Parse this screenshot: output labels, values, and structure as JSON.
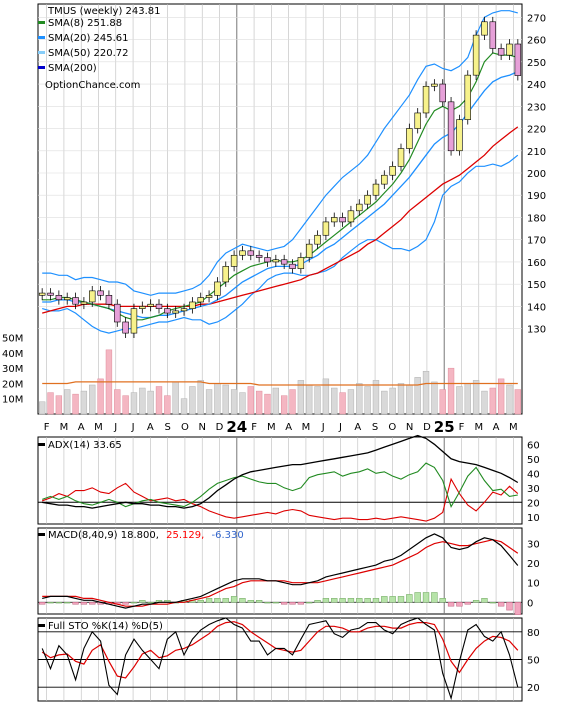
{
  "chart_data": {
    "type": "candlestick",
    "symbol_label": "TMUS (weekly) 243.81",
    "attribution": "OptionChance.com",
    "legend": [
      {
        "label": "SMA(8) 251.88",
        "color": "#228b22"
      },
      {
        "label": "SMA(20) 245.61",
        "color": "#1e90ff"
      },
      {
        "label": "SMA(50) 220.72",
        "color": "#87cefa"
      },
      {
        "label": "SMA(200)",
        "color": "#0000cc"
      }
    ],
    "price_axis": {
      "ticks": [
        "270",
        "260",
        "250",
        "240",
        "230",
        "220",
        "210",
        "200",
        "190",
        "180",
        "170",
        "160",
        "150",
        "140",
        "130"
      ],
      "ylim": [
        124,
        276
      ]
    },
    "volume_axis": {
      "ticks": [
        "50M",
        "40M",
        "30M",
        "20M",
        "10M"
      ],
      "ylim": [
        0,
        55
      ]
    },
    "month_labels": [
      "F",
      "M",
      "A",
      "M",
      "J",
      "J",
      "A",
      "S",
      "O",
      "N",
      "D",
      "24",
      "F",
      "M",
      "A",
      "M",
      "J",
      "J",
      "A",
      "S",
      "O",
      "N",
      "D",
      "25",
      "F",
      "M",
      "A",
      "M"
    ],
    "closes": [
      146,
      145,
      143,
      144,
      141,
      142,
      147,
      145,
      141,
      133,
      128,
      139,
      140,
      141,
      139,
      137,
      138,
      139,
      142,
      144,
      145,
      151,
      158,
      163,
      165,
      163,
      162,
      160,
      161,
      159,
      157,
      162,
      168,
      172,
      178,
      180,
      178,
      183,
      186,
      190,
      195,
      199,
      203,
      211,
      220,
      227,
      239,
      240,
      232,
      210,
      224,
      244,
      262,
      268,
      256,
      253,
      258,
      243.81
    ],
    "sma8": [
      143,
      143,
      144,
      144,
      143,
      142,
      141,
      140,
      139,
      137,
      135,
      134,
      134,
      135,
      136,
      138,
      139,
      140,
      141,
      142,
      145,
      148,
      151,
      154,
      156,
      158,
      159,
      160,
      161,
      160,
      160,
      161,
      163,
      166,
      169,
      172,
      175,
      178,
      181,
      184,
      187,
      191,
      195,
      200,
      206,
      214,
      222,
      228,
      230,
      228,
      230,
      234,
      241,
      250,
      254,
      253,
      253,
      251.88
    ],
    "sma20": [
      142,
      142,
      143,
      143,
      142,
      142,
      141,
      140,
      139,
      138,
      137,
      136,
      135,
      135,
      136,
      136,
      137,
      138,
      139,
      140,
      141,
      143,
      145,
      148,
      151,
      153,
      155,
      157,
      158,
      158,
      158,
      159,
      161,
      163,
      166,
      168,
      171,
      174,
      177,
      180,
      183,
      186,
      190,
      194,
      198,
      203,
      208,
      213,
      216,
      218,
      222,
      227,
      232,
      237,
      241,
      243,
      244,
      245.61
    ],
    "sma50": [
      137,
      138,
      139,
      140,
      140,
      141,
      141,
      141,
      141,
      140,
      140,
      140,
      140,
      140,
      140,
      140,
      140,
      140,
      140,
      141,
      141,
      142,
      143,
      144,
      145,
      146,
      147,
      148,
      149,
      150,
      151,
      152,
      154,
      155,
      157,
      159,
      161,
      163,
      165,
      168,
      170,
      173,
      176,
      179,
      183,
      186,
      189,
      192,
      195,
      197,
      199,
      202,
      205,
      208,
      212,
      215,
      218,
      220.72
    ],
    "bb_upper": [
      155,
      155,
      154,
      154,
      152,
      153,
      153,
      152,
      151,
      151,
      150,
      147,
      146,
      145,
      146,
      146,
      146,
      147,
      148,
      150,
      154,
      160,
      164,
      166,
      168,
      167,
      166,
      165,
      166,
      167,
      170,
      175,
      180,
      185,
      190,
      194,
      198,
      201,
      204,
      208,
      214,
      220,
      225,
      230,
      235,
      242,
      248,
      249,
      247,
      246,
      248,
      252,
      262,
      270,
      272,
      273,
      273,
      272
    ],
    "bb_lower": [
      139,
      138,
      138,
      139,
      137,
      134,
      131,
      129,
      128,
      129,
      130,
      130,
      131,
      132,
      133,
      133,
      134,
      135,
      134,
      134,
      132,
      133,
      135,
      138,
      141,
      145,
      148,
      152,
      154,
      155,
      155,
      154,
      154,
      155,
      156,
      158,
      162,
      165,
      168,
      170,
      170,
      168,
      166,
      166,
      165,
      167,
      170,
      178,
      190,
      194,
      196,
      200,
      203,
      203,
      204,
      203,
      205,
      208
    ],
    "volume": [
      8,
      14,
      12,
      16,
      13,
      15,
      19,
      23,
      42,
      16,
      12,
      14,
      17,
      15,
      18,
      12,
      21,
      10,
      18,
      22,
      16,
      20,
      19,
      16,
      14,
      18,
      15,
      13,
      17,
      12,
      16,
      22,
      19,
      18,
      23,
      17,
      14,
      16,
      20,
      18,
      22,
      15,
      17,
      20,
      19,
      24,
      28,
      21,
      16,
      30,
      18,
      20,
      22,
      15,
      17,
      23,
      19,
      16
    ],
    "volume_avg": [
      20,
      20,
      20,
      20,
      21,
      21,
      21,
      21,
      21,
      21,
      21,
      21,
      21,
      21,
      21,
      21,
      21,
      21,
      21,
      21,
      20,
      20,
      20,
      20,
      20,
      20,
      19,
      19,
      19,
      19,
      19,
      19,
      19,
      19,
      19,
      19,
      19,
      19,
      19,
      19,
      19,
      19,
      19,
      19,
      19,
      19,
      20,
      20,
      20,
      20,
      20,
      20,
      20,
      20,
      20,
      20,
      20,
      20
    ],
    "adx": {
      "label": "ADX(14) 33.65",
      "ticks": [
        "60",
        "50",
        "40",
        "30",
        "20",
        "10"
      ],
      "ylim": [
        5,
        65
      ],
      "levels": [
        20
      ],
      "adx": [
        20,
        19,
        18,
        18,
        17,
        17,
        16,
        17,
        18,
        19,
        20,
        19,
        19,
        18,
        18,
        17,
        17,
        16,
        17,
        19,
        23,
        28,
        32,
        36,
        39,
        41,
        42,
        43,
        44,
        45,
        46,
        46,
        47,
        48,
        49,
        50,
        51,
        52,
        53,
        54,
        56,
        58,
        60,
        62,
        64,
        66,
        64,
        60,
        55,
        50,
        48,
        47,
        46,
        44,
        42,
        40,
        37,
        33.65
      ],
      "plus": [
        22,
        24,
        22,
        24,
        21,
        19,
        18,
        20,
        22,
        20,
        17,
        19,
        21,
        22,
        20,
        19,
        18,
        17,
        20,
        24,
        29,
        33,
        35,
        37,
        38,
        36,
        34,
        33,
        33,
        30,
        28,
        30,
        37,
        39,
        40,
        41,
        38,
        40,
        41,
        43,
        40,
        41,
        38,
        36,
        39,
        41,
        47,
        44,
        35,
        17,
        27,
        38,
        44,
        35,
        28,
        29,
        24,
        25
      ],
      "minus": [
        21,
        23,
        26,
        24,
        28,
        28,
        30,
        27,
        26,
        30,
        33,
        27,
        24,
        21,
        22,
        23,
        21,
        22,
        19,
        17,
        14,
        12,
        10,
        9,
        10,
        11,
        12,
        13,
        12,
        14,
        15,
        14,
        11,
        10,
        9,
        8,
        9,
        9,
        8,
        8,
        9,
        8,
        9,
        10,
        9,
        8,
        7,
        9,
        13,
        36,
        26,
        18,
        14,
        20,
        27,
        25,
        31,
        26
      ]
    },
    "macd": {
      "label_prefix": "MACD(8,40,9) 18.800,",
      "label_signal": "25.129,",
      "label_hist": "-6.330",
      "ticks": [
        "30",
        "20",
        "10",
        "0"
      ],
      "ylim": [
        -6,
        38
      ],
      "macd": [
        2,
        3,
        3,
        3,
        2,
        1,
        1,
        0,
        -1,
        -2,
        -3,
        -2,
        -1,
        -1,
        0,
        0,
        0,
        1,
        2,
        3,
        5,
        7,
        9,
        11,
        12,
        12,
        12,
        11,
        11,
        10,
        9,
        9,
        10,
        11,
        13,
        14,
        15,
        16,
        17,
        18,
        19,
        21,
        22,
        24,
        27,
        30,
        33,
        35,
        33,
        28,
        27,
        28,
        31,
        33,
        32,
        29,
        24,
        18.8
      ],
      "signal": [
        3,
        3,
        3,
        3,
        3,
        2,
        2,
        1,
        0,
        -1,
        -2,
        -2,
        -2,
        -1,
        -1,
        -1,
        0,
        0,
        1,
        2,
        3,
        5,
        7,
        8,
        10,
        11,
        11,
        11,
        11,
        11,
        10,
        10,
        10,
        10,
        11,
        12,
        13,
        14,
        15,
        16,
        17,
        18,
        19,
        21,
        23,
        25,
        28,
        30,
        31,
        30,
        29,
        29,
        30,
        31,
        32,
        31,
        28,
        25.129
      ]
    },
    "stoch": {
      "label": "Full STO %K(14) %D(5)",
      "ticks": [
        "80",
        "50",
        "20"
      ],
      "ylim": [
        5,
        95
      ],
      "levels": [
        80,
        50,
        20
      ],
      "k": [
        62,
        40,
        65,
        55,
        28,
        62,
        80,
        70,
        22,
        12,
        55,
        72,
        60,
        50,
        40,
        72,
        80,
        55,
        72,
        82,
        88,
        92,
        95,
        88,
        84,
        70,
        70,
        55,
        62,
        62,
        55,
        72,
        88,
        90,
        92,
        78,
        74,
        82,
        84,
        90,
        90,
        82,
        78,
        88,
        92,
        95,
        88,
        82,
        35,
        8,
        48,
        82,
        88,
        75,
        70,
        80,
        55,
        20
      ],
      "d": [
        58,
        52,
        55,
        56,
        48,
        45,
        60,
        66,
        48,
        32,
        30,
        42,
        56,
        60,
        52,
        54,
        60,
        62,
        66,
        72,
        78,
        86,
        90,
        91,
        88,
        80,
        74,
        68,
        62,
        60,
        58,
        60,
        70,
        80,
        86,
        86,
        84,
        80,
        80,
        84,
        86,
        86,
        84,
        84,
        88,
        90,
        90,
        88,
        72,
        48,
        36,
        50,
        62,
        70,
        75,
        74,
        70,
        60
      ]
    }
  }
}
